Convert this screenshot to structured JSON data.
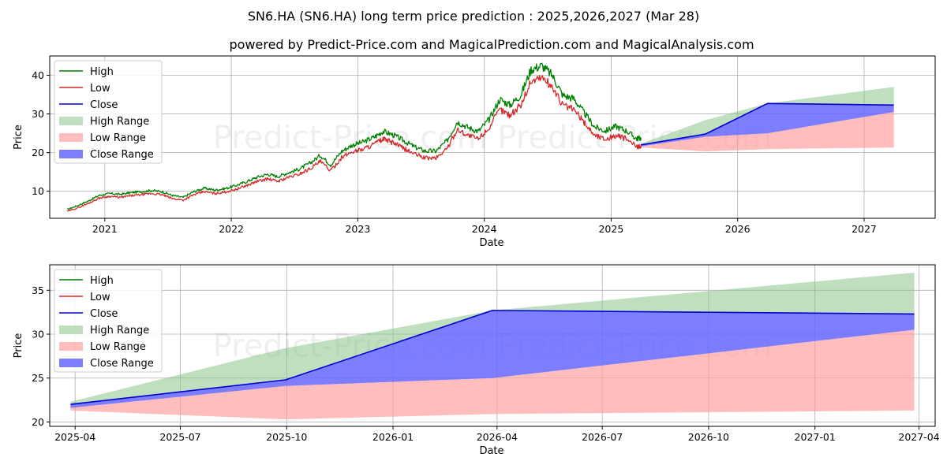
{
  "title": "SN6.HA (SN6.HA) long term price prediction : 2025,2026,2027 (Mar 28)",
  "subtitle": "powered by Predict-Price.com and MagicalPrediction.com and MagicalAnalysis.com",
  "watermark": "Predict-Price.com",
  "colors": {
    "high": "#008000",
    "low": "#d62728",
    "close": "#0000cc",
    "high_range": "#7fbf7f",
    "low_range": "#ff9999",
    "close_range": "#6666ff"
  },
  "chart_data": [
    {
      "type": "line",
      "panel": "top",
      "xlabel": "Date",
      "ylabel": "Price",
      "xlim": [
        "2020-07-26",
        "2027-07-25"
      ],
      "ylim": [
        3,
        45
      ],
      "x_ticks": [
        "2021",
        "2022",
        "2023",
        "2024",
        "2025",
        "2026",
        "2027"
      ],
      "x_tick_dates": [
        "2021-01-01",
        "2022-01-01",
        "2023-01-01",
        "2024-01-01",
        "2025-01-01",
        "2026-01-01",
        "2027-01-01"
      ],
      "y_ticks": [
        10,
        20,
        30,
        40
      ],
      "grid": true,
      "legend_position": "top-left",
      "legend": [
        "High",
        "Low",
        "Close",
        "High Range",
        "Low Range",
        "Close Range"
      ],
      "history": {
        "dates": [
          "2020-09-15",
          "2020-10-15",
          "2020-11-15",
          "2020-12-15",
          "2021-01-15",
          "2021-02-15",
          "2021-03-15",
          "2021-04-15",
          "2021-05-15",
          "2021-06-15",
          "2021-07-15",
          "2021-08-15",
          "2021-09-15",
          "2021-10-15",
          "2021-11-15",
          "2021-12-15",
          "2022-01-15",
          "2022-02-15",
          "2022-03-15",
          "2022-04-15",
          "2022-05-15",
          "2022-06-15",
          "2022-07-15",
          "2022-08-15",
          "2022-09-15",
          "2022-10-15",
          "2022-11-15",
          "2022-12-15",
          "2023-01-15",
          "2023-02-15",
          "2023-03-15",
          "2023-04-15",
          "2023-05-15",
          "2023-06-15",
          "2023-07-15",
          "2023-08-15",
          "2023-09-15",
          "2023-10-15",
          "2023-11-15",
          "2023-12-15",
          "2024-01-15",
          "2024-02-15",
          "2024-03-15",
          "2024-04-15",
          "2024-05-15",
          "2024-06-15",
          "2024-07-15",
          "2024-08-15",
          "2024-09-15",
          "2024-10-15",
          "2024-11-15",
          "2024-12-15",
          "2025-01-15",
          "2025-02-15",
          "2025-03-15",
          "2025-03-28"
        ],
        "close": [
          5.0,
          6.0,
          7.2,
          8.5,
          9.0,
          8.8,
          9.2,
          9.5,
          9.8,
          9.5,
          8.5,
          8.0,
          9.5,
          10.3,
          9.8,
          10.2,
          11.0,
          12.0,
          13.0,
          13.8,
          13.2,
          14.2,
          15.0,
          16.5,
          18.5,
          16.0,
          19.5,
          21.0,
          21.8,
          23.0,
          24.5,
          23.5,
          22.0,
          20.5,
          19.5,
          19.5,
          22.0,
          27.0,
          25.5,
          24.5,
          27.5,
          32.5,
          31.0,
          33.5,
          40.0,
          41.0,
          38.5,
          33.5,
          32.5,
          29.0,
          25.5,
          24.5,
          25.5,
          24.5,
          22.5,
          22.8
        ],
        "high": [
          5.3,
          6.3,
          7.5,
          8.9,
          9.4,
          9.2,
          9.6,
          9.9,
          10.2,
          9.9,
          8.9,
          8.4,
          9.9,
          10.8,
          10.3,
          10.7,
          11.5,
          12.5,
          13.6,
          14.4,
          13.8,
          14.8,
          15.7,
          17.2,
          19.3,
          16.8,
          20.3,
          21.9,
          22.7,
          23.9,
          25.5,
          24.5,
          23.0,
          21.4,
          20.4,
          20.4,
          23.0,
          28.0,
          26.5,
          25.5,
          28.6,
          33.8,
          32.3,
          34.8,
          41.5,
          42.5,
          40.0,
          34.8,
          34.0,
          30.3,
          26.6,
          25.6,
          26.8,
          25.6,
          23.6,
          23.8
        ],
        "low": [
          4.8,
          5.7,
          6.9,
          8.2,
          8.7,
          8.4,
          8.8,
          9.1,
          9.4,
          9.1,
          8.1,
          7.7,
          9.1,
          9.9,
          9.4,
          9.8,
          10.5,
          11.5,
          12.5,
          13.2,
          12.6,
          13.6,
          14.4,
          15.8,
          17.7,
          15.3,
          18.7,
          20.2,
          20.9,
          22.1,
          23.5,
          22.5,
          21.0,
          19.6,
          18.6,
          18.6,
          21.0,
          26.0,
          24.5,
          23.5,
          26.4,
          31.2,
          29.7,
          32.2,
          38.5,
          39.5,
          37.0,
          32.2,
          31.2,
          27.8,
          24.5,
          23.5,
          24.4,
          23.5,
          21.5,
          21.8
        ]
      },
      "prediction": {
        "dates": [
          "2025-03-28",
          "2025-09-30",
          "2026-03-28",
          "2027-03-28"
        ],
        "close": [
          22.0,
          24.8,
          32.7,
          32.3
        ],
        "high_range_upper": [
          22.3,
          28.4,
          32.7,
          37.0
        ],
        "low_range_lower": [
          21.3,
          20.3,
          20.9,
          21.3
        ],
        "close_range_upper": [
          22.0,
          24.8,
          32.7,
          32.3
        ],
        "close_range_lower": [
          21.6,
          24.1,
          25.0,
          30.5
        ]
      }
    },
    {
      "type": "line",
      "panel": "bottom",
      "xlabel": "Date",
      "ylabel": "Price",
      "xlim": [
        "2025-03-10",
        "2027-04-15"
      ],
      "ylim": [
        19.5,
        37.9
      ],
      "x_ticks": [
        "2025-04",
        "2025-07",
        "2025-10",
        "2026-01",
        "2026-04",
        "2026-07",
        "2026-10",
        "2027-01",
        "2027-04"
      ],
      "x_tick_dates": [
        "2025-04-01",
        "2025-07-01",
        "2025-10-01",
        "2026-01-01",
        "2026-04-01",
        "2026-07-01",
        "2026-10-01",
        "2027-01-01",
        "2027-04-01"
      ],
      "y_ticks": [
        20,
        25,
        30,
        35
      ],
      "grid": true,
      "legend_position": "top-left",
      "legend": [
        "High",
        "Low",
        "Close",
        "High Range",
        "Low Range",
        "Close Range"
      ],
      "prediction": {
        "dates": [
          "2025-03-28",
          "2025-09-30",
          "2026-03-28",
          "2027-03-28"
        ],
        "close": [
          22.0,
          24.8,
          32.7,
          32.3
        ],
        "high_range_upper": [
          22.3,
          28.4,
          32.7,
          37.0
        ],
        "low_range_lower": [
          21.3,
          20.3,
          20.9,
          21.3
        ],
        "close_range_upper": [
          22.0,
          24.8,
          32.7,
          32.3
        ],
        "close_range_lower": [
          21.6,
          24.1,
          25.0,
          30.5
        ]
      }
    }
  ]
}
